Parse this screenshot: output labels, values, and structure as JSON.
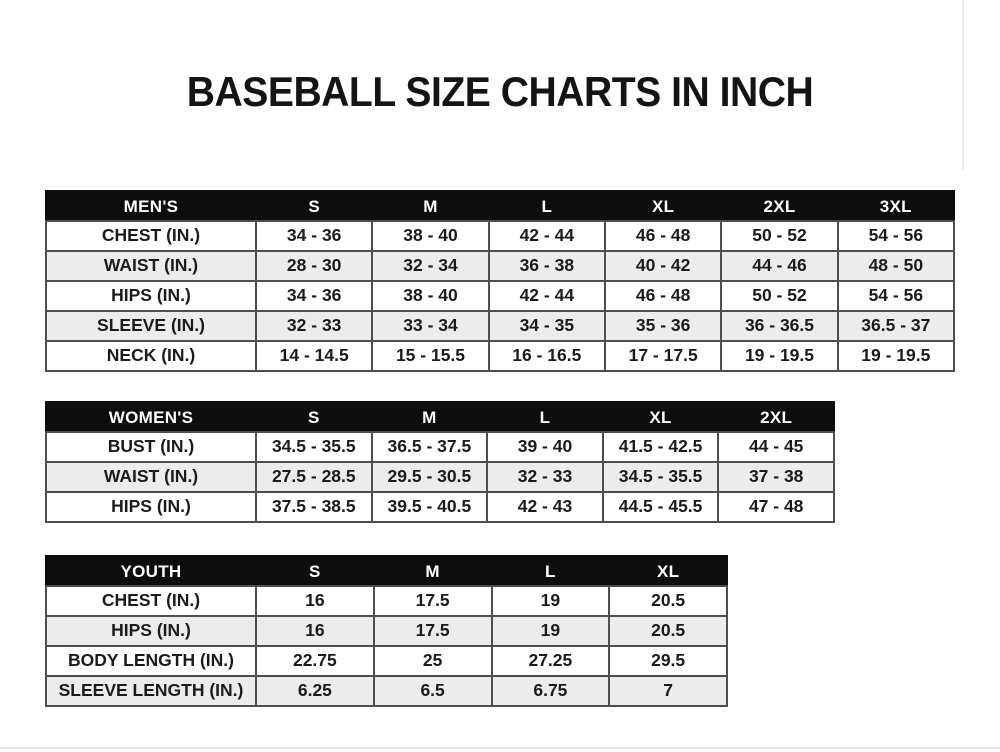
{
  "page": {
    "title": "BASEBALL SIZE CHARTS IN INCH"
  },
  "tables": [
    {
      "id": "mens",
      "header": [
        "MEN'S",
        "S",
        "M",
        "L",
        "XL",
        "2XL",
        "3XL"
      ],
      "rows": [
        {
          "label": "CHEST (IN.)",
          "values": [
            "34 - 36",
            "38 - 40",
            "42 - 44",
            "46 - 48",
            "50 - 52",
            "54 - 56"
          ]
        },
        {
          "label": "WAIST (IN.)",
          "values": [
            "28 - 30",
            "32 - 34",
            "36 - 38",
            "40 - 42",
            "44 - 46",
            "48 - 50"
          ]
        },
        {
          "label": "HIPS (IN.)",
          "values": [
            "34 - 36",
            "38 - 40",
            "42 - 44",
            "46 - 48",
            "50 - 52",
            "54 - 56"
          ]
        },
        {
          "label": "SLEEVE (IN.)",
          "values": [
            "32 - 33",
            "33 - 34",
            "34 - 35",
            "35 - 36",
            "36 - 36.5",
            "36.5 - 37"
          ]
        },
        {
          "label": "NECK (IN.)",
          "values": [
            "14 - 14.5",
            "15 - 15.5",
            "16 - 16.5",
            "17 - 17.5",
            "19 - 19.5",
            "19 - 19.5"
          ]
        }
      ]
    },
    {
      "id": "womens",
      "header": [
        "WOMEN'S",
        "S",
        "M",
        "L",
        "XL",
        "2XL"
      ],
      "rows": [
        {
          "label": "BUST (IN.)",
          "values": [
            "34.5 - 35.5",
            "36.5 - 37.5",
            "39 - 40",
            "41.5 - 42.5",
            "44 - 45"
          ]
        },
        {
          "label": "WAIST (IN.)",
          "values": [
            "27.5 - 28.5",
            "29.5 - 30.5",
            "32 - 33",
            "34.5 - 35.5",
            "37 - 38"
          ]
        },
        {
          "label": "HIPS (IN.)",
          "values": [
            "37.5 - 38.5",
            "39.5 - 40.5",
            "42 - 43",
            "44.5 - 45.5",
            "47 - 48"
          ]
        }
      ]
    },
    {
      "id": "youth",
      "header": [
        "YOUTH",
        "S",
        "M",
        "L",
        "XL"
      ],
      "rows": [
        {
          "label": "CHEST (IN.)",
          "values": [
            "16",
            "17.5",
            "19",
            "20.5"
          ]
        },
        {
          "label": "HIPS (IN.)",
          "values": [
            "16",
            "17.5",
            "19",
            "20.5"
          ]
        },
        {
          "label": "BODY LENGTH (IN.)",
          "values": [
            "22.75",
            "25",
            "27.25",
            "29.5"
          ]
        },
        {
          "label": "SLEEVE LENGTH (IN.)",
          "values": [
            "6.25",
            "6.5",
            "6.75",
            "7"
          ]
        }
      ]
    }
  ],
  "colors": {
    "header_bg": "#0d0d0d",
    "header_text": "#ffffff",
    "row_bg": "#ffffff",
    "row_alt_bg": "#ececec",
    "border": "#4e4e4e",
    "text": "#1b1b1b",
    "page_bg": "#ffffff"
  }
}
